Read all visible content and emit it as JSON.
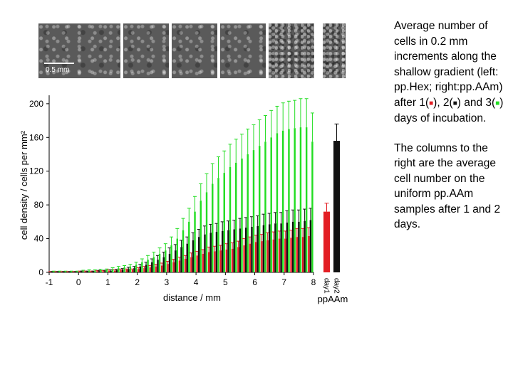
{
  "figure": {
    "scale_bar_label": "0.5 mm",
    "microscopy_panels": 6
  },
  "caption": {
    "text_before_swatches": "Average number of cells in 0.2 mm increments along the shallow gradient (left: pp.Hex; right:pp.AAm) after 1(",
    "sep1": "), 2(",
    "sep2": ") and 3(",
    "text_after_swatches": ") days of incubation.",
    "swatch_glyph": "■",
    "paragraph2": "The columns to the right are the average cell number on the uniform pp.AAm samples after 1 and 2 days."
  },
  "chart_data": {
    "type": "bar",
    "xlabel": "distance / mm",
    "ylabel": "cell density / cells per mm²",
    "xlim": [
      -1,
      8
    ],
    "ylim": [
      0,
      210
    ],
    "xticks": [
      -1,
      0,
      1,
      2,
      3,
      4,
      5,
      6,
      7,
      8
    ],
    "yticks": [
      0,
      40,
      80,
      120,
      160,
      200
    ],
    "grid": false,
    "colors": {
      "day1": "#e31e24",
      "day2": "#111111",
      "day3": "#22dd22"
    },
    "x": [
      -1,
      -0.8,
      -0.6,
      -0.4,
      -0.2,
      0,
      0.2,
      0.4,
      0.6,
      0.8,
      1,
      1.2,
      1.4,
      1.6,
      1.8,
      2,
      2.2,
      2.4,
      2.6,
      2.8,
      3,
      3.2,
      3.4,
      3.6,
      3.8,
      4,
      4.2,
      4.4,
      4.6,
      4.8,
      5,
      5.2,
      5.4,
      5.6,
      5.8,
      6,
      6.2,
      6.4,
      6.6,
      6.8,
      7,
      7.2,
      7.4,
      7.6,
      7.8
    ],
    "series": [
      {
        "key": "day1",
        "values": [
          0.5,
          0.5,
          0.5,
          0.5,
          0.5,
          1,
          1,
          1,
          1.5,
          1.5,
          2,
          2,
          2.5,
          3,
          3,
          4,
          5,
          6,
          7,
          8,
          10,
          12,
          14,
          16,
          18,
          20,
          22,
          24,
          25,
          26,
          27,
          28,
          30,
          32,
          34,
          36,
          37,
          38,
          39,
          40,
          40,
          41,
          42,
          42,
          43
        ],
        "errors": [
          0.5,
          0.5,
          0.5,
          0.5,
          0.5,
          0.5,
          0.5,
          0.5,
          0.5,
          0.5,
          1,
          1,
          1,
          1,
          1,
          1.5,
          2,
          2,
          2.5,
          3,
          3,
          3.5,
          4,
          4,
          5,
          5,
          5,
          6,
          6,
          6,
          7,
          7,
          7,
          8,
          8,
          8,
          8,
          9,
          9,
          9,
          9,
          9,
          10,
          10,
          10
        ]
      },
      {
        "key": "day2",
        "values": [
          0.5,
          0.5,
          0.5,
          0.5,
          0.5,
          1,
          1,
          1,
          1.5,
          1.5,
          2,
          2.5,
          3,
          4,
          5,
          7,
          9,
          12,
          15,
          18,
          22,
          26,
          30,
          34,
          38,
          42,
          45,
          47,
          48,
          49,
          50,
          51,
          52,
          53,
          54,
          55,
          56,
          57,
          58,
          58,
          59,
          60,
          60,
          61,
          62
        ],
        "errors": [
          0.5,
          0.5,
          0.5,
          0.5,
          0.5,
          0.5,
          0.5,
          0.5,
          1,
          1,
          1,
          1,
          1.5,
          2,
          2,
          2.5,
          3,
          4,
          5,
          6,
          7,
          7,
          8,
          8,
          9,
          9,
          10,
          10,
          10,
          11,
          11,
          11,
          12,
          12,
          12,
          12,
          13,
          13,
          13,
          13,
          14,
          14,
          14,
          14,
          14
        ]
      },
      {
        "key": "day3",
        "values": [
          1,
          1,
          1,
          1,
          1,
          1.5,
          2,
          2,
          2.5,
          3,
          4,
          5,
          6,
          7,
          9,
          12,
          15,
          18,
          22,
          26,
          32,
          40,
          50,
          60,
          72,
          85,
          95,
          105,
          112,
          118,
          125,
          130,
          135,
          140,
          145,
          150,
          155,
          160,
          165,
          168,
          170,
          171,
          172,
          172,
          155
        ],
        "errors": [
          0.5,
          0.5,
          0.5,
          0.5,
          0.5,
          1,
          1,
          1,
          1,
          1,
          1.5,
          2,
          2,
          2.5,
          3,
          4,
          5,
          6,
          7,
          8,
          10,
          12,
          14,
          16,
          18,
          20,
          22,
          24,
          25,
          26,
          27,
          28,
          29,
          30,
          30,
          31,
          31,
          32,
          32,
          33,
          33,
          33,
          34,
          34,
          34
        ]
      }
    ],
    "uniform": {
      "label": "ppAAm",
      "categories": [
        "day1",
        "day2"
      ],
      "values": [
        72,
        156
      ],
      "errors": [
        10,
        20
      ],
      "colors": [
        "#e31e24",
        "#111111"
      ]
    }
  }
}
